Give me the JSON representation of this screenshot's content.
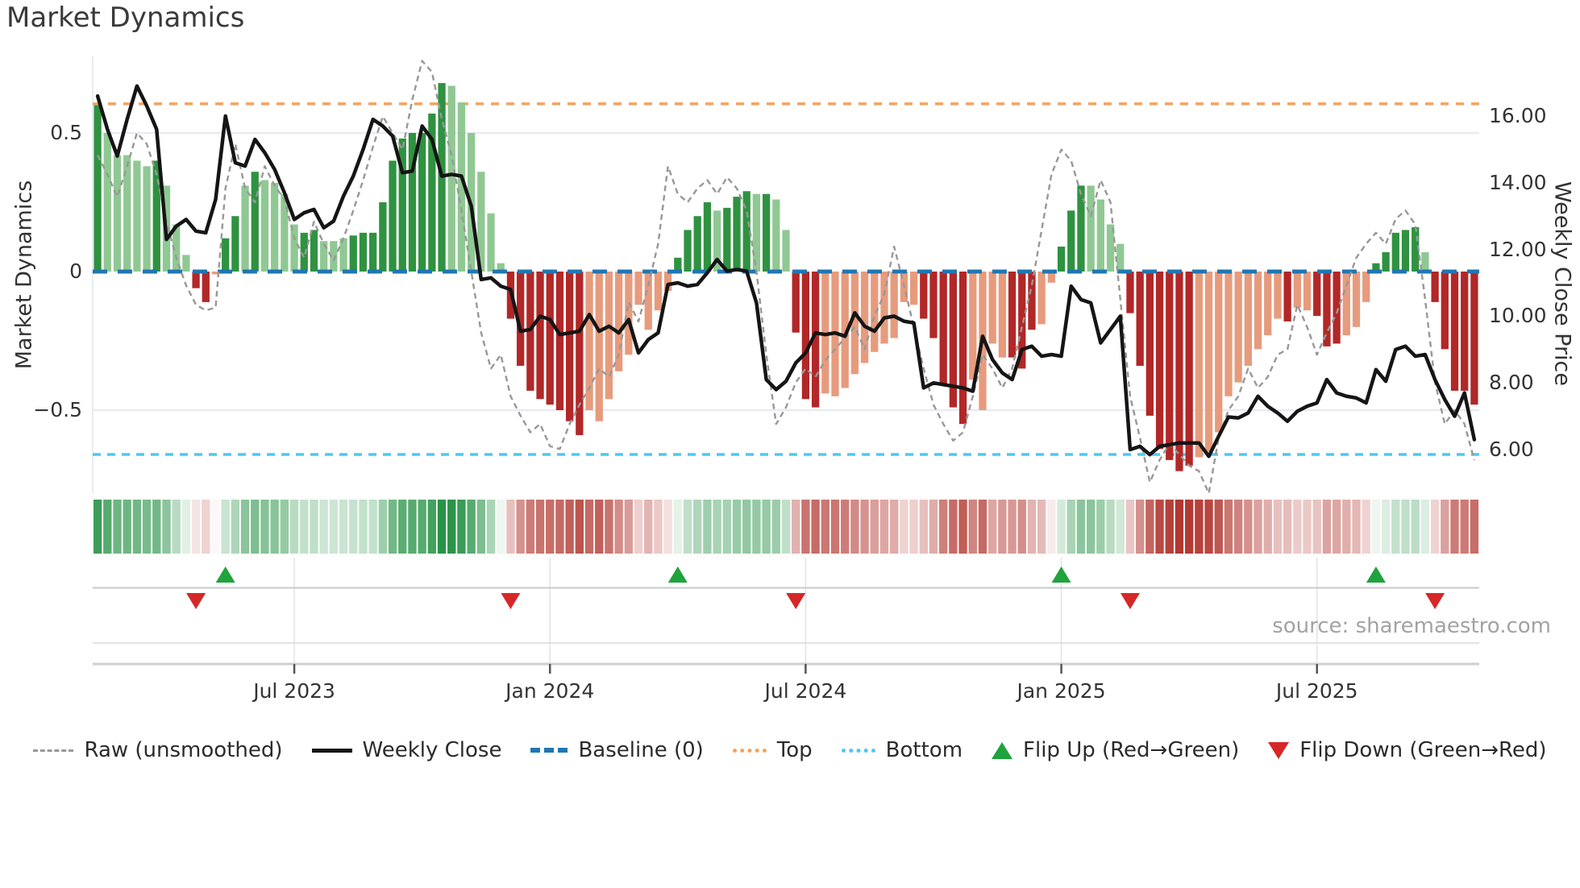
{
  "title": "Market Dynamics",
  "source": "source: sharemaestro.com",
  "left_axis": {
    "label": "Market Dynamics",
    "ticks": [
      "0.5",
      "0",
      "−0.5"
    ],
    "tick_values": [
      0.5,
      0,
      -0.5
    ]
  },
  "right_axis": {
    "label": "Weekly Close Price",
    "ticks": [
      "16.00",
      "14.00",
      "12.00",
      "10.00",
      "8.00",
      "6.00"
    ],
    "tick_values": [
      16,
      14,
      12,
      10,
      8,
      6
    ]
  },
  "legend": {
    "items": [
      {
        "label": "Raw (unsmoothed)"
      },
      {
        "label": "Weekly Close"
      },
      {
        "label": "Baseline (0)"
      },
      {
        "label": "Top"
      },
      {
        "label": "Bottom"
      },
      {
        "label": "Flip Up (Red→Green)"
      },
      {
        "label": "Flip Down (Green→Red)"
      }
    ]
  },
  "colors": {
    "bar_green_dark": "#2f9240",
    "bar_green_light": "#90c893",
    "bar_red_dark": "#b22727",
    "bar_red_light": "#e79b7d",
    "price_line": "#151515",
    "raw_line": "#989898",
    "baseline": "#1f77b4",
    "top_line": "#f2a35f",
    "bottom_line": "#4dc9f2",
    "flip_up": "#1fa33c",
    "flip_down": "#d62728",
    "grid": "#e9ebf3",
    "heat_pos": "#1e8e3e",
    "heat_neg": "#b23730",
    "panel_line": "#c9c9c9",
    "tick_mark": "#555555"
  },
  "chart_data": {
    "type": "bar",
    "subtype": "weekly oscillator bars + price line + raw dashed line + heatmap strip + flip markers",
    "title": "Market Dynamics",
    "ylabel_left": "Market Dynamics",
    "ylabel_right": "Weekly Close Price",
    "start_date": "2023-02-10",
    "frequency": "weekly",
    "baseline": 0,
    "top_threshold": 0.605,
    "bottom_threshold": -0.66,
    "ylim_left": [
      -0.8,
      0.8
    ],
    "ylim_right": [
      5.5,
      17.5
    ],
    "grid": "horizontal at ±0.5 only",
    "legend_position": "bottom center",
    "x_ticks": [
      {
        "label": "Jul 2023",
        "week": 20
      },
      {
        "label": "Jan 2024",
        "week": 46
      },
      {
        "label": "Jul 2024",
        "week": 72
      },
      {
        "label": "Jan 2025",
        "week": 98
      },
      {
        "label": "Jul 2025",
        "week": 124
      }
    ],
    "oscillator": [
      0.6,
      0.5,
      0.42,
      0.42,
      0.4,
      0.38,
      0.4,
      0.31,
      0.17,
      0.06,
      -0.06,
      -0.11,
      -0.01,
      0.12,
      0.2,
      0.31,
      0.36,
      0.33,
      0.32,
      0.28,
      0.17,
      0.14,
      0.15,
      0.11,
      0.11,
      0.12,
      0.13,
      0.14,
      0.14,
      0.25,
      0.4,
      0.48,
      0.5,
      0.5,
      0.57,
      0.68,
      0.67,
      0.61,
      0.5,
      0.36,
      0.21,
      0.03,
      -0.17,
      -0.34,
      -0.43,
      -0.46,
      -0.48,
      -0.5,
      -0.54,
      -0.59,
      -0.5,
      -0.54,
      -0.46,
      -0.36,
      -0.3,
      -0.12,
      -0.21,
      -0.14,
      -0.07,
      0.05,
      0.15,
      0.2,
      0.25,
      0.22,
      0.23,
      0.27,
      0.29,
      0.28,
      0.28,
      0.26,
      0.15,
      -0.22,
      -0.46,
      -0.49,
      -0.44,
      -0.45,
      -0.42,
      -0.37,
      -0.33,
      -0.29,
      -0.26,
      -0.24,
      -0.11,
      -0.12,
      -0.17,
      -0.24,
      -0.41,
      -0.49,
      -0.55,
      -0.39,
      -0.5,
      -0.26,
      -0.31,
      -0.31,
      -0.35,
      -0.21,
      -0.19,
      -0.04,
      0.09,
      0.22,
      0.31,
      0.31,
      0.26,
      0.17,
      0.1,
      -0.15,
      -0.34,
      -0.52,
      -0.64,
      -0.68,
      -0.72,
      -0.7,
      -0.67,
      -0.65,
      -0.58,
      -0.45,
      -0.4,
      -0.34,
      -0.28,
      -0.23,
      -0.17,
      -0.18,
      -0.13,
      -0.14,
      -0.16,
      -0.27,
      -0.26,
      -0.23,
      -0.2,
      -0.11,
      0.03,
      0.07,
      0.14,
      0.15,
      0.16,
      0.07,
      -0.11,
      -0.28,
      -0.43,
      -0.43,
      -0.48
    ],
    "bar_shade": "dllllldlllddlddldllllddllldddddddddDllllllddddddddlllllllllddddldddldllDddllllllllllDddddllllDddllDddllllDddddddlllllllllDllDddlllDddddlddddd",
    "raw": [
      0.42,
      0.35,
      0.27,
      0.38,
      0.5,
      0.46,
      0.35,
      0.18,
      0.05,
      -0.05,
      -0.12,
      -0.14,
      -0.13,
      0.3,
      0.46,
      0.3,
      0.25,
      0.38,
      0.31,
      0.26,
      0.12,
      0.05,
      0.18,
      0.1,
      0.04,
      0.12,
      0.22,
      0.33,
      0.45,
      0.56,
      0.5,
      0.44,
      0.62,
      0.76,
      0.72,
      0.55,
      0.42,
      0.22,
      0.0,
      -0.22,
      -0.35,
      -0.3,
      -0.45,
      -0.52,
      -0.58,
      -0.55,
      -0.63,
      -0.64,
      -0.55,
      -0.48,
      -0.42,
      -0.35,
      -0.38,
      -0.3,
      -0.11,
      -0.18,
      -0.05,
      0.1,
      0.38,
      0.28,
      0.25,
      0.3,
      0.33,
      0.28,
      0.34,
      0.3,
      0.22,
      0.0,
      -0.3,
      -0.55,
      -0.49,
      -0.4,
      -0.35,
      -0.38,
      -0.32,
      -0.28,
      -0.24,
      -0.2,
      -0.28,
      -0.16,
      -0.08,
      0.09,
      -0.05,
      -0.2,
      -0.35,
      -0.48,
      -0.55,
      -0.61,
      -0.58,
      -0.45,
      -0.3,
      -0.35,
      -0.42,
      -0.35,
      -0.2,
      -0.05,
      0.15,
      0.35,
      0.44,
      0.4,
      0.28,
      0.2,
      0.33,
      0.25,
      -0.1,
      -0.45,
      -0.6,
      -0.76,
      -0.68,
      -0.62,
      -0.66,
      -0.7,
      -0.72,
      -0.8,
      -0.6,
      -0.5,
      -0.45,
      -0.35,
      -0.42,
      -0.38,
      -0.3,
      -0.28,
      -0.12,
      -0.2,
      -0.3,
      -0.22,
      -0.15,
      -0.05,
      0.05,
      0.1,
      0.14,
      0.1,
      0.19,
      0.22,
      0.17,
      -0.1,
      -0.4,
      -0.55,
      -0.5,
      -0.55,
      -0.68
    ],
    "weekly_close": [
      16.6,
      15.6,
      14.8,
      15.9,
      16.9,
      16.3,
      15.6,
      12.3,
      12.7,
      12.9,
      12.55,
      12.5,
      13.5,
      16.0,
      14.6,
      14.5,
      15.3,
      14.9,
      14.4,
      13.7,
      12.9,
      13.1,
      13.2,
      12.65,
      12.85,
      13.6,
      14.2,
      15.0,
      15.9,
      15.7,
      15.4,
      14.3,
      14.35,
      15.7,
      15.3,
      14.2,
      14.25,
      14.2,
      13.3,
      11.1,
      11.15,
      10.9,
      10.8,
      9.55,
      9.6,
      10.0,
      9.9,
      9.45,
      9.5,
      9.55,
      10.05,
      9.55,
      9.7,
      9.5,
      9.9,
      8.9,
      9.3,
      9.5,
      10.95,
      11.0,
      10.9,
      10.95,
      11.3,
      11.7,
      11.35,
      11.4,
      11.35,
      10.4,
      8.1,
      7.8,
      8.05,
      8.6,
      8.9,
      9.5,
      9.45,
      9.5,
      9.4,
      10.1,
      9.7,
      9.55,
      9.95,
      10.0,
      9.85,
      9.8,
      7.85,
      8.0,
      7.95,
      7.9,
      7.85,
      7.75,
      9.4,
      8.7,
      8.3,
      8.1,
      9.0,
      9.1,
      8.8,
      8.85,
      8.8,
      10.9,
      10.5,
      10.4,
      9.2,
      9.6,
      10.0,
      6.0,
      6.1,
      5.85,
      6.1,
      6.15,
      6.2,
      6.2,
      6.2,
      5.8,
      6.4,
      6.98,
      6.95,
      7.1,
      7.6,
      7.3,
      7.1,
      6.85,
      7.15,
      7.3,
      7.4,
      8.1,
      7.7,
      7.6,
      7.55,
      7.4,
      8.4,
      8.05,
      9.0,
      9.1,
      8.8,
      8.85,
      8.1,
      7.5,
      7.0,
      7.7,
      6.3
    ],
    "flip_up_weeks": [
      13,
      59,
      98,
      130
    ],
    "flip_down_weeks": [
      10,
      42,
      71,
      105,
      136
    ]
  }
}
